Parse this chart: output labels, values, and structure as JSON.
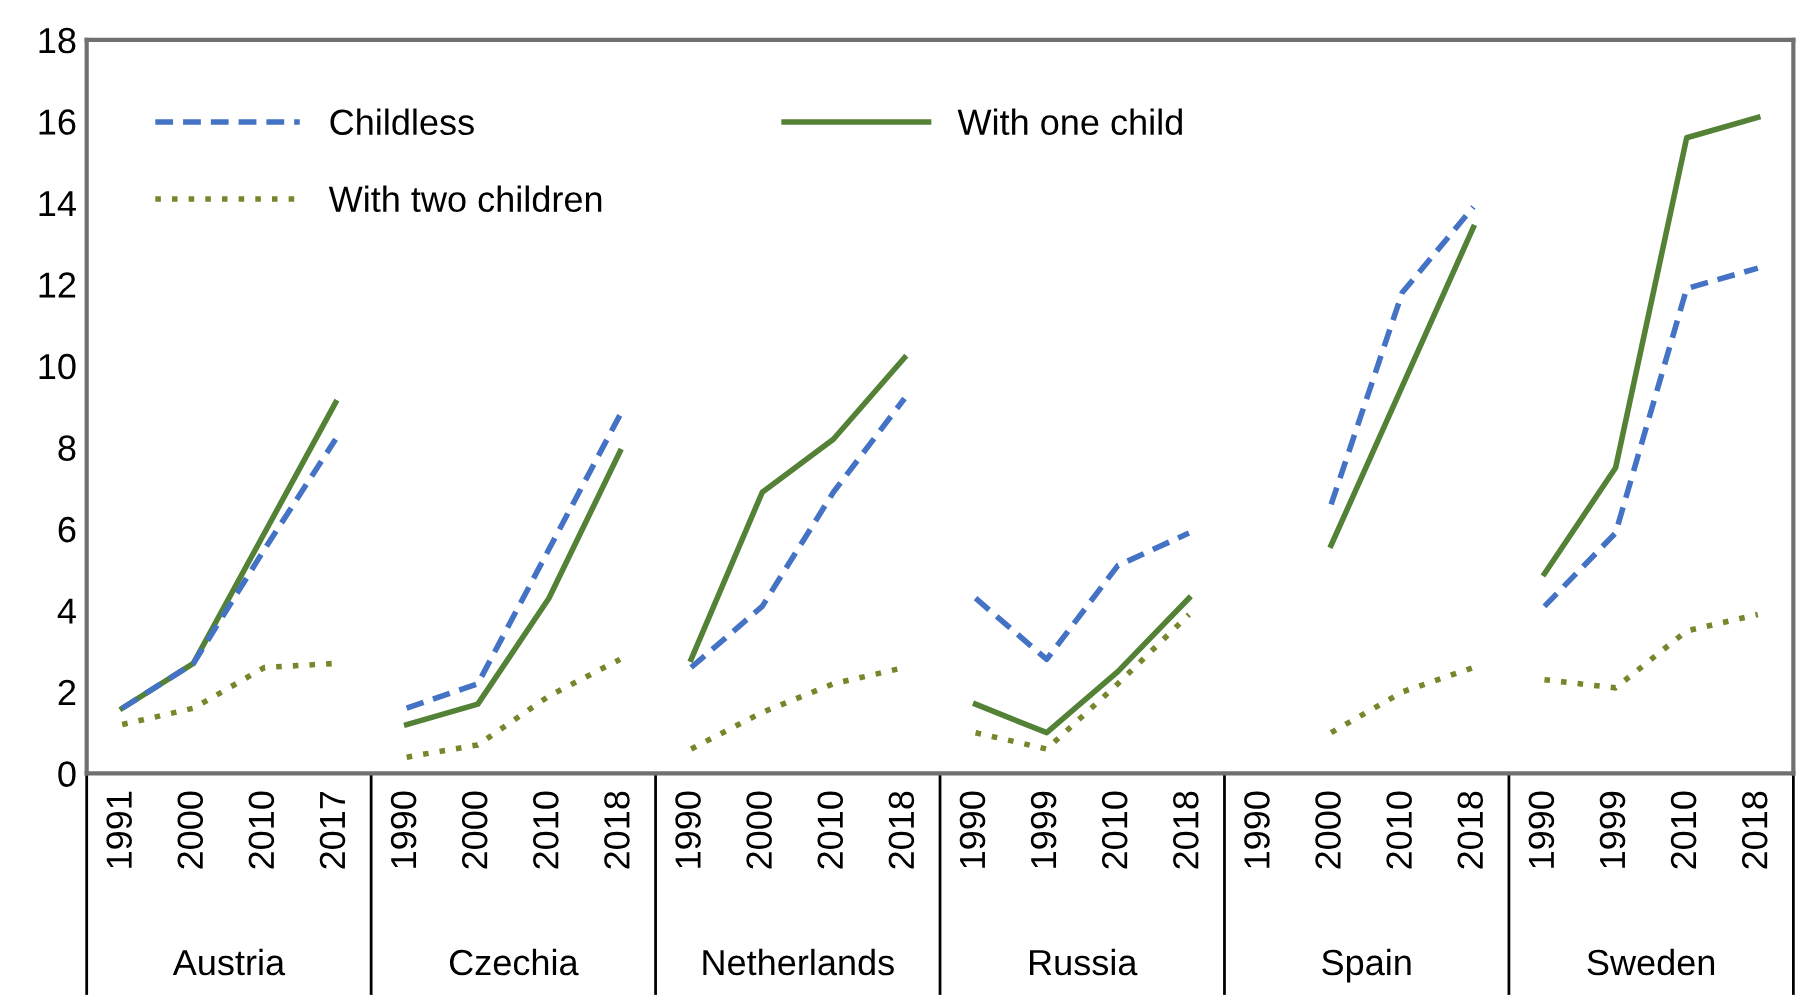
{
  "chart_data": {
    "type": "line",
    "categories": [
      "1991",
      "2000",
      "2010",
      "2017",
      "1990",
      "2000",
      "2010",
      "2018",
      "1990",
      "2000",
      "2010",
      "2018",
      "1990",
      "1999",
      "2010",
      "2018",
      "1990",
      "2000",
      "2010",
      "2018",
      "1990",
      "1999",
      "2010",
      "2018"
    ],
    "annotations": [
      "Austria",
      "Czechia",
      "Netherlands",
      "Russia",
      "Spain",
      "Sweden"
    ],
    "series": [
      {
        "name": "Childless",
        "color": "#4472c4",
        "line_style": "dashed",
        "values": [
          1.6,
          2.7,
          5.5,
          8.2,
          1.6,
          2.2,
          5.5,
          8.8,
          2.6,
          4.1,
          6.9,
          9.2,
          4.3,
          2.8,
          5.1,
          5.9,
          null,
          6.6,
          11.8,
          13.9,
          4.1,
          5.9,
          11.9,
          12.4
        ]
      },
      {
        "name": "With one child",
        "color": "#538135",
        "line_style": "solid",
        "values": [
          1.6,
          2.7,
          5.9,
          9.1,
          1.2,
          1.7,
          4.3,
          7.9,
          2.8,
          6.9,
          8.2,
          10.2,
          1.7,
          1.0,
          2.5,
          4.3,
          null,
          5.6,
          9.5,
          13.4,
          4.9,
          7.5,
          15.6,
          16.1
        ]
      },
      {
        "name": "With two children",
        "color": "#77862b",
        "line_style": "dotted",
        "values": [
          1.2,
          1.6,
          2.6,
          2.7,
          0.4,
          0.7,
          1.9,
          2.8,
          0.6,
          1.5,
          2.2,
          2.6,
          1.0,
          0.6,
          2.2,
          3.9,
          null,
          1.0,
          2.0,
          2.6,
          2.3,
          2.1,
          3.5,
          3.9
        ]
      }
    ],
    "ylim": [
      0,
      18
    ],
    "yticks": [
      0,
      2,
      4,
      6,
      8,
      10,
      12,
      14,
      16,
      18
    ],
    "grid": false,
    "legend": "top left",
    "marker": "none"
  }
}
